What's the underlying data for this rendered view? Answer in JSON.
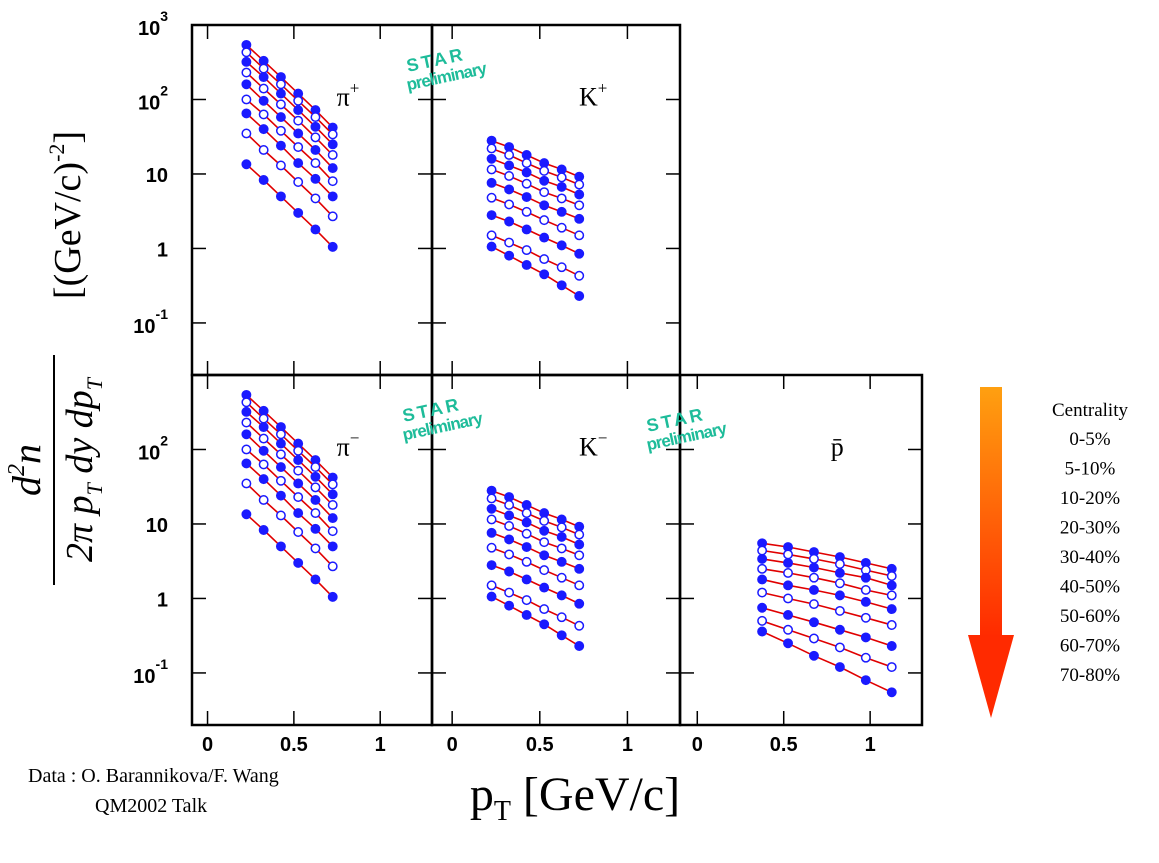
{
  "chart_data": [
    {
      "type": "scatter",
      "log_y": true,
      "label": "π",
      "superscript": "+",
      "xlim": [
        -0.09,
        1.3
      ],
      "ylim": [
        0.02,
        1000
      ],
      "xticks": [
        0,
        0.5,
        1
      ],
      "xtick_labels": false,
      "yticks": [
        {
          "value": 1000,
          "label": "10",
          "superscript": "3"
        },
        {
          "value": 100,
          "label": "10",
          "superscript": "2"
        },
        10,
        1,
        {
          "value": 0.1,
          "label": "10",
          "superscript": "-1"
        }
      ],
      "ytick_labels": true,
      "marker_color": "#1a1aff",
      "fit_color": "#e00000",
      "x": [
        0.225,
        0.325,
        0.425,
        0.525,
        0.625,
        0.725
      ],
      "series": [
        {
          "marker": "filled",
          "values": [
            540,
            330,
            200,
            120,
            72,
            42
          ]
        },
        {
          "marker": "open",
          "values": [
            430,
            260,
            160,
            96,
            58,
            34
          ]
        },
        {
          "marker": "filled",
          "values": [
            320,
            200,
            120,
            72,
            43,
            25
          ]
        },
        {
          "marker": "open",
          "values": [
            230,
            140,
            86,
            52,
            31,
            18
          ]
        },
        {
          "marker": "filled",
          "values": [
            160,
            96,
            58,
            35,
            21,
            12
          ]
        },
        {
          "marker": "open",
          "values": [
            100,
            63,
            38,
            23,
            14,
            8
          ]
        },
        {
          "marker": "filled",
          "values": [
            65,
            40,
            24,
            14,
            8.6,
            5
          ]
        },
        {
          "marker": "open",
          "values": [
            35,
            21,
            13,
            7.8,
            4.7,
            2.7
          ]
        },
        {
          "marker": "filled",
          "values": [
            13.5,
            8.3,
            5,
            3,
            1.8,
            1.05
          ]
        }
      ]
    },
    {
      "type": "scatter",
      "log_y": true,
      "label": "K",
      "superscript": "+",
      "xlim": [
        -0.115,
        1.3
      ],
      "ylim": [
        0.02,
        1000
      ],
      "xticks": [
        0,
        0.5,
        1
      ],
      "xtick_labels": false,
      "yticks": [
        1000,
        100,
        10,
        1,
        0.1
      ],
      "ytick_labels": false,
      "marker_color": "#1a1aff",
      "fit_color": "#e00000",
      "x": [
        0.225,
        0.325,
        0.425,
        0.525,
        0.625,
        0.725
      ],
      "series": [
        {
          "marker": "filled",
          "values": [
            28,
            23,
            18,
            14,
            11.5,
            9.2
          ]
        },
        {
          "marker": "open",
          "values": [
            22,
            18,
            14,
            11,
            9,
            7.2
          ]
        },
        {
          "marker": "filled",
          "values": [
            16,
            13,
            10.5,
            8.1,
            6.7,
            5.3
          ]
        },
        {
          "marker": "open",
          "values": [
            11.5,
            9.4,
            7.4,
            5.7,
            4.7,
            3.8
          ]
        },
        {
          "marker": "filled",
          "values": [
            7.6,
            6.2,
            4.9,
            3.8,
            3.1,
            2.5
          ]
        },
        {
          "marker": "open",
          "values": [
            4.8,
            3.9,
            3.1,
            2.4,
            1.9,
            1.5
          ]
        },
        {
          "marker": "filled",
          "values": [
            2.8,
            2.3,
            1.8,
            1.4,
            1.1,
            0.85
          ]
        },
        {
          "marker": "open",
          "values": [
            1.5,
            1.2,
            0.95,
            0.72,
            0.56,
            0.43
          ]
        },
        {
          "marker": "filled",
          "values": [
            1.06,
            0.8,
            0.6,
            0.45,
            0.32,
            0.23
          ]
        }
      ]
    },
    {
      "type": "scatter",
      "log_y": true,
      "label": "π",
      "superscript": "−",
      "xlim": [
        -0.09,
        1.3
      ],
      "ylim": [
        0.02,
        1000
      ],
      "xticks": [
        0,
        0.5,
        1
      ],
      "xtick_labels": true,
      "yticks": [
        {
          "value": 100,
          "label": "10",
          "superscript": "2"
        },
        10,
        1,
        {
          "value": 0.1,
          "label": "10",
          "superscript": "-1"
        }
      ],
      "ytick_labels": true,
      "marker_color": "#1a1aff",
      "fit_color": "#e00000",
      "x": [
        0.225,
        0.325,
        0.425,
        0.525,
        0.625,
        0.725
      ],
      "series": [
        {
          "marker": "filled",
          "values": [
            540,
            330,
            200,
            120,
            72,
            42
          ]
        },
        {
          "marker": "open",
          "values": [
            430,
            260,
            160,
            96,
            58,
            34
          ]
        },
        {
          "marker": "filled",
          "values": [
            320,
            200,
            120,
            72,
            43,
            25
          ]
        },
        {
          "marker": "open",
          "values": [
            230,
            140,
            86,
            52,
            31,
            18
          ]
        },
        {
          "marker": "filled",
          "values": [
            160,
            96,
            58,
            35,
            21,
            12
          ]
        },
        {
          "marker": "open",
          "values": [
            100,
            63,
            38,
            23,
            14,
            8
          ]
        },
        {
          "marker": "filled",
          "values": [
            65,
            40,
            24,
            14,
            8.6,
            5
          ]
        },
        {
          "marker": "open",
          "values": [
            35,
            21,
            13,
            7.8,
            4.7,
            2.7
          ]
        },
        {
          "marker": "filled",
          "values": [
            13.5,
            8.3,
            5,
            3,
            1.8,
            1.05
          ]
        }
      ]
    },
    {
      "type": "scatter",
      "log_y": true,
      "label": "K",
      "superscript": "−",
      "xlim": [
        -0.115,
        1.3
      ],
      "ylim": [
        0.02,
        1000
      ],
      "xticks": [
        0,
        0.5,
        1
      ],
      "xtick_labels": true,
      "yticks": [
        100,
        10,
        1,
        0.1
      ],
      "ytick_labels": false,
      "marker_color": "#1a1aff",
      "fit_color": "#e00000",
      "x": [
        0.225,
        0.325,
        0.425,
        0.525,
        0.625,
        0.725
      ],
      "series": [
        {
          "marker": "filled",
          "values": [
            28,
            23,
            18,
            14,
            11.5,
            9.2
          ]
        },
        {
          "marker": "open",
          "values": [
            22,
            18,
            14,
            11,
            9,
            7.2
          ]
        },
        {
          "marker": "filled",
          "values": [
            16,
            13,
            10.5,
            8.1,
            6.7,
            5.3
          ]
        },
        {
          "marker": "open",
          "values": [
            11.5,
            9.4,
            7.4,
            5.7,
            4.7,
            3.8
          ]
        },
        {
          "marker": "filled",
          "values": [
            7.6,
            6.2,
            4.9,
            3.8,
            3.1,
            2.5
          ]
        },
        {
          "marker": "open",
          "values": [
            4.8,
            3.9,
            3.1,
            2.4,
            1.9,
            1.5
          ]
        },
        {
          "marker": "filled",
          "values": [
            2.8,
            2.3,
            1.8,
            1.4,
            1.1,
            0.85
          ]
        },
        {
          "marker": "open",
          "values": [
            1.5,
            1.2,
            0.95,
            0.72,
            0.56,
            0.43
          ]
        },
        {
          "marker": "filled",
          "values": [
            1.06,
            0.8,
            0.6,
            0.45,
            0.32,
            0.23
          ]
        }
      ]
    },
    {
      "type": "scatter",
      "log_y": true,
      "label": "p̄",
      "xlim": [
        -0.1,
        1.3
      ],
      "ylim": [
        0.02,
        1000
      ],
      "xticks": [
        0,
        0.5,
        1
      ],
      "xtick_labels": true,
      "yticks": [
        100,
        10,
        1,
        0.1
      ],
      "ytick_labels": false,
      "marker_color": "#1a1aff",
      "fit_color": "#e00000",
      "x": [
        0.375,
        0.525,
        0.675,
        0.825,
        0.975,
        1.125
      ],
      "series": [
        {
          "marker": "filled",
          "values": [
            5.5,
            4.9,
            4.2,
            3.6,
            3.0,
            2.5
          ]
        },
        {
          "marker": "open",
          "values": [
            4.4,
            3.9,
            3.4,
            2.9,
            2.4,
            2.0
          ]
        },
        {
          "marker": "filled",
          "values": [
            3.4,
            3.0,
            2.6,
            2.2,
            1.9,
            1.5
          ]
        },
        {
          "marker": "open",
          "values": [
            2.5,
            2.2,
            1.9,
            1.6,
            1.3,
            1.1
          ]
        },
        {
          "marker": "filled",
          "values": [
            1.8,
            1.5,
            1.3,
            1.1,
            0.9,
            0.72
          ]
        },
        {
          "marker": "open",
          "values": [
            1.2,
            1.0,
            0.84,
            0.68,
            0.55,
            0.44
          ]
        },
        {
          "marker": "filled",
          "values": [
            0.75,
            0.6,
            0.48,
            0.38,
            0.3,
            0.23
          ]
        },
        {
          "marker": "open",
          "values": [
            0.5,
            0.38,
            0.29,
            0.22,
            0.16,
            0.12
          ]
        },
        {
          "marker": "filled",
          "values": [
            0.36,
            0.25,
            0.17,
            0.12,
            0.08,
            0.055
          ]
        }
      ]
    }
  ],
  "figure": {
    "ylabel": {
      "numerator": [
        "d",
        "2",
        "n"
      ],
      "denominator": [
        "2π  p",
        "T",
        " dy dp",
        "T"
      ],
      "units": [
        "[(GeV/c)",
        "-2",
        "]"
      ]
    },
    "xlabel": [
      "p",
      "T",
      " [GeV/c]"
    ],
    "legend": {
      "title": "Centrality",
      "labels": [
        "0-5%",
        "5-10%",
        "10-20%",
        "20-30%",
        "30-40%",
        "40-50%",
        "50-60%",
        "60-70%",
        "70-80%"
      ]
    },
    "watermarks": [
      {
        "lines": [
          "STAR",
          "preliminary"
        ]
      },
      {
        "lines": [
          "STAR",
          "preliminary"
        ]
      },
      {
        "lines": [
          "STAR",
          "preliminary"
        ]
      }
    ],
    "credit": [
      "Data : O. Barannikova/F. Wang",
      "QM2002 Talk"
    ]
  }
}
